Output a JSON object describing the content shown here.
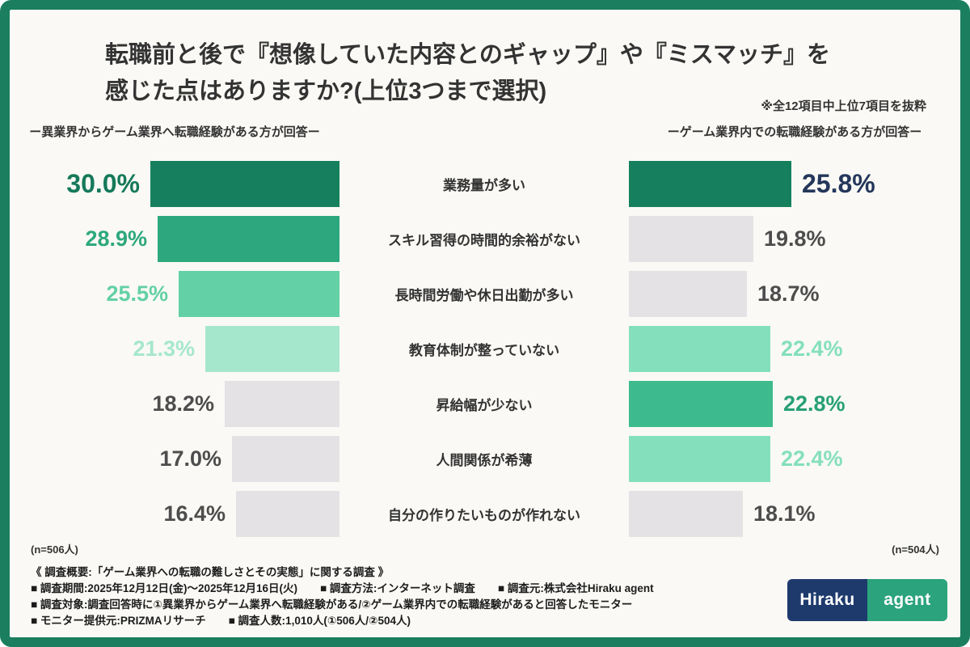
{
  "title": {
    "line1": "転職前と後で『想像していた内容とのギャップ』や『ミスマッチ』を",
    "line2": "感じた点はありますか?(上位3つまで選択)",
    "note": "※全12項目中上位7項目を抜粋"
  },
  "colors": {
    "frame": "#1b7f5f",
    "background": "#faf9f5",
    "dark_green": "#16805e",
    "medium_green": "#2da87e",
    "light_green": "#63d0a6",
    "pale_green": "#a5e7cd",
    "gray_bar": "#e4e2e4",
    "gray_text": "#4d4d4d",
    "navy_text": "#24365a"
  },
  "chart_data": {
    "type": "bar",
    "orientation": "horizontal_mirrored",
    "title": "転職前と後で『想像していた内容とのギャップ』や『ミスマッチ』を感じた点はありますか?(上位3つまで選択)",
    "note": "※全12項目中上位7項目を抜粋",
    "unit": "%",
    "xlim": [
      0,
      30
    ],
    "categories": [
      "業務量が多い",
      "スキル習得の時間的余裕がない",
      "長時間労働や休日出勤が多い",
      "教育体制が整っていない",
      "昇給幅が少ない",
      "人間関係が希薄",
      "自分の作りたいものが作れない"
    ],
    "series": [
      {
        "name": "異業界からゲーム業界へ転職経験がある方が回答",
        "n": 506,
        "values": [
          30.0,
          28.9,
          25.5,
          21.3,
          18.2,
          17.0,
          16.4
        ]
      },
      {
        "name": "ゲーム業界内での転職経験がある方が回答",
        "n": 504,
        "values": [
          25.8,
          19.8,
          18.7,
          22.4,
          22.8,
          22.4,
          18.1
        ]
      }
    ],
    "legend_position": "top",
    "grid": false
  },
  "headers": {
    "left": "ー異業界からゲーム業界へ転職経験がある方が回答ー",
    "right": "ーゲーム業界内での転職経験がある方が回答ー"
  },
  "n_labels": {
    "left": "(n=506人)",
    "right": "(n=504人)"
  },
  "rows": [
    {
      "category": "業務量が多い",
      "left": {
        "pct": "30.0%",
        "value": 30.0,
        "bar_color": "#16805e",
        "text_color": "#15795a",
        "emph": true
      },
      "right": {
        "pct": "25.8%",
        "value": 25.8,
        "bar_color": "#16805e",
        "text_color": "#24365a",
        "emph": true
      }
    },
    {
      "category": "スキル習得の時間的余裕がない",
      "left": {
        "pct": "28.9%",
        "value": 28.9,
        "bar_color": "#2da87e",
        "text_color": "#2da87e",
        "emph": false
      },
      "right": {
        "pct": "19.8%",
        "value": 19.8,
        "bar_color": "#e4e2e4",
        "text_color": "#4d4d4d",
        "emph": false
      }
    },
    {
      "category": "長時間労働や休日出勤が多い",
      "left": {
        "pct": "25.5%",
        "value": 25.5,
        "bar_color": "#63d0a6",
        "text_color": "#63d0a6",
        "emph": false
      },
      "right": {
        "pct": "18.7%",
        "value": 18.7,
        "bar_color": "#e4e2e4",
        "text_color": "#4d4d4d",
        "emph": false
      }
    },
    {
      "category": "教育体制が整っていない",
      "left": {
        "pct": "21.3%",
        "value": 21.3,
        "bar_color": "#a5e7cd",
        "text_color": "#a5e7cd",
        "emph": false
      },
      "right": {
        "pct": "22.4%",
        "value": 22.4,
        "bar_color": "#84dfbd",
        "text_color": "#84dfbd",
        "emph": false
      }
    },
    {
      "category": "昇給幅が少ない",
      "left": {
        "pct": "18.2%",
        "value": 18.2,
        "bar_color": "#e4e2e4",
        "text_color": "#4d4d4d",
        "emph": false
      },
      "right": {
        "pct": "22.8%",
        "value": 22.8,
        "bar_color": "#3dbb8e",
        "text_color": "#27a077",
        "emph": false
      }
    },
    {
      "category": "人間関係が希薄",
      "left": {
        "pct": "17.0%",
        "value": 17.0,
        "bar_color": "#e4e2e4",
        "text_color": "#4d4d4d",
        "emph": false
      },
      "right": {
        "pct": "22.4%",
        "value": 22.4,
        "bar_color": "#84dfbd",
        "text_color": "#84dfbd",
        "emph": false
      }
    },
    {
      "category": "自分の作りたいものが作れない",
      "left": {
        "pct": "16.4%",
        "value": 16.4,
        "bar_color": "#e4e2e4",
        "text_color": "#4d4d4d",
        "emph": false
      },
      "right": {
        "pct": "18.1%",
        "value": 18.1,
        "bar_color": "#e4e2e4",
        "text_color": "#4d4d4d",
        "emph": false
      }
    }
  ],
  "footer": {
    "line1": "《 調査概要:「ゲーム業界への転職の難しさとその実態」に関する調査 》",
    "line2_items": [
      "■ 調査期間:2025年12月12日(金)〜2025年12月16日(火)",
      "■ 調査方法:インターネット調査",
      "■ 調査元:株式会社Hiraku agent"
    ],
    "line3": "■ 調査対象:調査回答時に①異業界からゲーム業界へ転職経験がある/②ゲーム業界内での転職経験があると回答したモニター",
    "line4_items": [
      "■ モニター提供元:PRIZMAリサーチ",
      "■ 調査人数:1,010人(①506人/②504人)"
    ]
  },
  "logo": {
    "text1": "Hiraku",
    "text2": "agent",
    "color1": "#1e3a6d",
    "color2": "#2ba37c"
  }
}
